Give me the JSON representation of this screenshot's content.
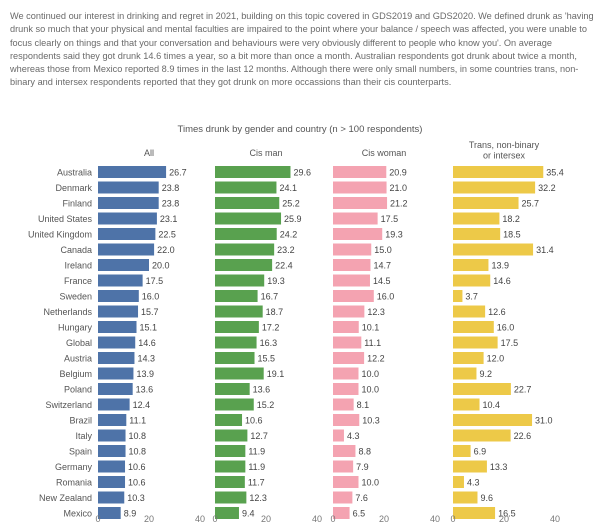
{
  "intro_text": "We continued our interest in drinking and regret in 2021, building on this topic covered in GDS2019 and GDS2020. We defined drunk as 'having drunk so much that your physical and mental faculties are impaired to the point where your balance / speech was affected, you were unable to focus clearly on things and that your conversation and behaviours were very obviously different to people who know you'. On average respondents said they got drunk 14.6 times a year, so a bit more than once a month. Australian respondents got drunk about twice a month, whereas those from Mexico reported 8.9 times in the last 12 months. Although there were only small numbers, in some countries trans, non-binary and intersex respondents reported that they got drunk on more occassions than their cis counterparts.",
  "colors": {
    "all": "#4e73a8",
    "cis_man": "#59a14f",
    "cis_woman": "#f4a3b1",
    "trans": "#edc948"
  },
  "chart_data": {
    "type": "bar",
    "orientation": "horizontal",
    "title": "Times drunk by gender and country (n > 100 respondents)",
    "categories": [
      "Australia",
      "Denmark",
      "Finland",
      "United States",
      "United Kingdom",
      "Canada",
      "Ireland",
      "France",
      "Sweden",
      "Netherlands",
      "Hungary",
      "Global",
      "Austria",
      "Belgium",
      "Poland",
      "Switzerland",
      "Brazil",
      "Italy",
      "Spain",
      "Germany",
      "Romania",
      "New Zealand",
      "Mexico"
    ],
    "series": [
      {
        "name": "All",
        "color_key": "all",
        "values": [
          26.7,
          23.8,
          23.8,
          23.1,
          22.5,
          22.0,
          20.0,
          17.5,
          16.0,
          15.7,
          15.1,
          14.6,
          14.3,
          13.9,
          13.6,
          12.4,
          11.1,
          10.8,
          10.8,
          10.6,
          10.6,
          10.3,
          8.9
        ]
      },
      {
        "name": "Cis man",
        "color_key": "cis_man",
        "values": [
          29.6,
          24.1,
          25.2,
          25.9,
          24.2,
          23.2,
          22.4,
          19.3,
          16.7,
          18.7,
          17.2,
          16.3,
          15.5,
          19.1,
          13.6,
          15.2,
          10.6,
          12.7,
          11.9,
          11.9,
          11.7,
          12.3,
          9.4
        ]
      },
      {
        "name": "Cis woman",
        "color_key": "cis_woman",
        "values": [
          20.9,
          21.0,
          21.2,
          17.5,
          19.3,
          15.0,
          14.7,
          14.5,
          16.0,
          12.3,
          10.1,
          11.1,
          12.2,
          10.0,
          10.0,
          8.1,
          10.3,
          4.3,
          8.8,
          7.9,
          10.0,
          7.6,
          6.5
        ]
      },
      {
        "name": "Trans, non-binary or intersex",
        "color_key": "trans",
        "values": [
          35.4,
          32.2,
          25.7,
          18.2,
          18.5,
          31.4,
          13.9,
          14.6,
          3.7,
          12.6,
          16.0,
          17.5,
          12.0,
          9.2,
          22.7,
          10.4,
          31.0,
          22.6,
          6.9,
          13.3,
          4.3,
          9.6,
          16.5
        ]
      }
    ],
    "xlim": [
      0,
      40
    ],
    "xticks": [
      0,
      20,
      40
    ],
    "value_format": "0.0"
  }
}
